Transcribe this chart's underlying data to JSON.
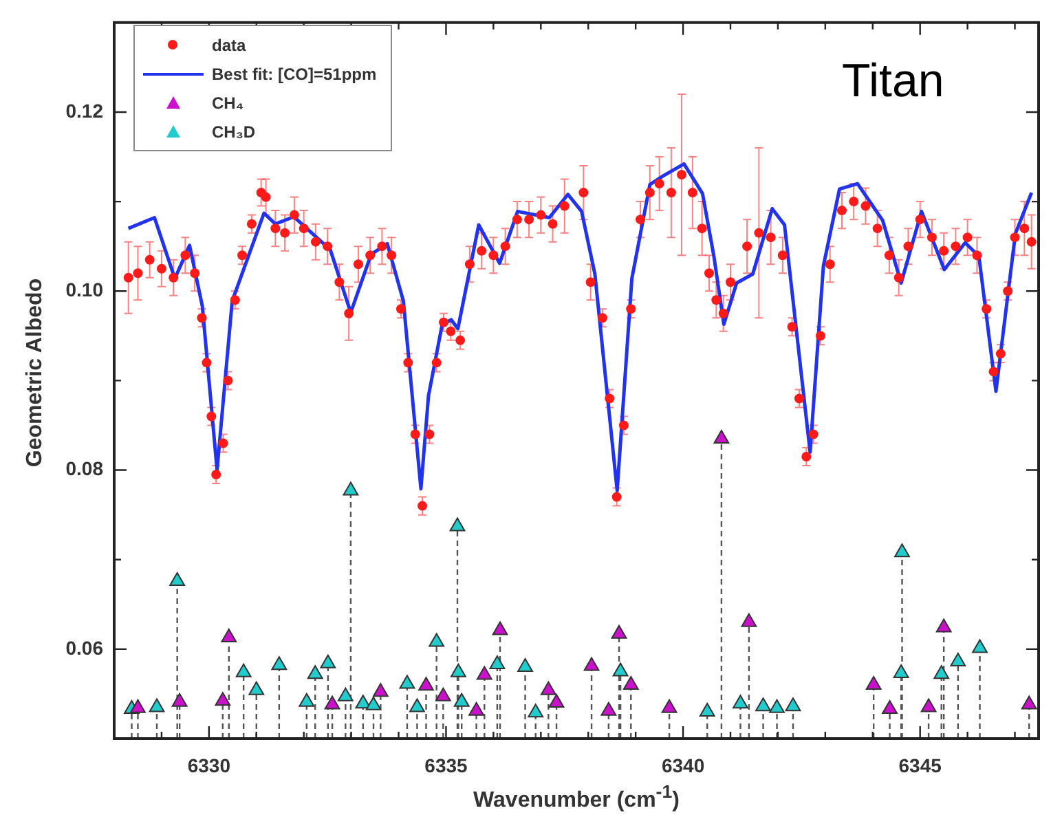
{
  "chart_data": {
    "type": "scatter",
    "xlabel": "Wavenumber (cm$^{-1}$)",
    "ylabel": "Geometric Albedo",
    "annotations": [
      "Titan"
    ],
    "legend": "top left",
    "grid": false,
    "xlim": [
      6328,
      6347.5
    ],
    "ylim": [
      0.05,
      0.13
    ],
    "xticks": [
      {
        "value": 6328,
        "label": null
      },
      {
        "value": 6329,
        "label": null
      },
      6330,
      {
        "value": 6331,
        "label": null
      },
      {
        "value": 6332,
        "label": null
      },
      {
        "value": 6333,
        "label": null
      },
      {
        "value": 6334,
        "label": null
      },
      6335,
      {
        "value": 6336,
        "label": null
      },
      {
        "value": 6337,
        "label": null
      },
      {
        "value": 6338,
        "label": null
      },
      {
        "value": 6339,
        "label": null
      },
      6340,
      {
        "value": 6341,
        "label": null
      },
      {
        "value": 6342,
        "label": null
      },
      {
        "value": 6343,
        "label": null
      },
      {
        "value": 6344,
        "label": null
      },
      6345,
      {
        "value": 6346,
        "label": null
      },
      {
        "value": 6347,
        "label": null
      }
    ],
    "yticks": [
      {
        "value": 0.05,
        "label": null
      },
      0.06,
      {
        "value": 0.07,
        "label": null
      },
      0.08,
      {
        "value": 0.09,
        "label": null
      },
      {
        "value": 0.1,
        "label": "0.10"
      },
      {
        "value": 0.11,
        "label": null
      },
      0.12
    ],
    "series": [
      {
        "type": "scatter",
        "name": "data",
        "color": "#ff1a1a",
        "marker": "circle",
        "x": [
          6328.3,
          6328.5,
          6328.75,
          6329.0,
          6329.25,
          6329.5,
          6329.7,
          6329.85,
          6329.95,
          6330.05,
          6330.15,
          6330.3,
          6330.4,
          6330.55,
          6330.7,
          6330.9,
          6331.1,
          6331.2,
          6331.4,
          6331.6,
          6331.8,
          6332.0,
          6332.25,
          6332.5,
          6332.75,
          6332.95,
          6333.15,
          6333.4,
          6333.65,
          6333.85,
          6334.05,
          6334.2,
          6334.35,
          6334.5,
          6334.65,
          6334.8,
          6334.95,
          6335.1,
          6335.3,
          6335.5,
          6335.75,
          6336.0,
          6336.25,
          6336.5,
          6336.75,
          6337.0,
          6337.25,
          6337.5,
          6337.9,
          6338.05,
          6338.3,
          6338.45,
          6338.6,
          6338.75,
          6338.9,
          6339.1,
          6339.3,
          6339.5,
          6339.75,
          6339.97,
          6340.2,
          6340.4,
          6340.55,
          6340.7,
          6340.85,
          6341.0,
          6341.35,
          6341.6,
          6341.85,
          6342.1,
          6342.3,
          6342.45,
          6342.6,
          6342.75,
          6342.9,
          6343.1,
          6343.35,
          6343.6,
          6343.85,
          6344.1,
          6344.35,
          6344.55,
          6344.75,
          6345.0,
          6345.25,
          6345.5,
          6345.75,
          6346.0,
          6346.2,
          6346.4,
          6346.55,
          6346.7,
          6346.85,
          6347.0,
          6347.2,
          6347.35
        ],
        "values": [
          0.1015,
          0.102,
          0.1035,
          0.1025,
          0.1015,
          0.104,
          0.102,
          0.097,
          0.092,
          0.086,
          0.0795,
          0.083,
          0.09,
          0.099,
          0.104,
          0.1075,
          0.111,
          0.1105,
          0.107,
          0.1065,
          0.1085,
          0.107,
          0.1055,
          0.105,
          0.101,
          0.0975,
          0.103,
          0.104,
          0.105,
          0.104,
          0.098,
          0.092,
          0.084,
          0.076,
          0.084,
          0.092,
          0.0965,
          0.0955,
          0.0945,
          0.103,
          0.1045,
          0.104,
          0.105,
          0.108,
          0.108,
          0.1085,
          0.1075,
          0.1095,
          0.111,
          0.101,
          0.097,
          0.088,
          0.077,
          0.085,
          0.098,
          0.108,
          0.111,
          0.112,
          0.111,
          0.113,
          0.111,
          0.107,
          0.102,
          0.099,
          0.0975,
          0.101,
          0.105,
          0.1065,
          0.106,
          0.104,
          0.096,
          0.088,
          0.0815,
          0.084,
          0.095,
          0.103,
          0.109,
          0.11,
          0.1095,
          0.107,
          0.104,
          0.1015,
          0.105,
          0.108,
          0.106,
          0.1045,
          0.105,
          0.106,
          0.104,
          0.098,
          0.091,
          0.093,
          0.1,
          0.106,
          0.107,
          0.1055
        ],
        "errors": [
          0.004,
          0.003,
          0.002,
          0.002,
          0.002,
          0.002,
          0.002,
          0.001,
          0.001,
          0.001,
          0.001,
          0.001,
          0.001,
          0.001,
          0.001,
          0.001,
          0.0015,
          0.002,
          0.002,
          0.002,
          0.002,
          0.002,
          0.002,
          0.002,
          0.002,
          0.003,
          0.002,
          0.002,
          0.002,
          0.002,
          0.001,
          0.001,
          0.001,
          0.001,
          0.001,
          0.001,
          0.001,
          0.001,
          0.001,
          0.002,
          0.002,
          0.002,
          0.002,
          0.002,
          0.002,
          0.002,
          0.002,
          0.003,
          0.003,
          0.002,
          0.001,
          0.001,
          0.001,
          0.001,
          0.001,
          0.002,
          0.003,
          0.003,
          0.005,
          0.009,
          0.004,
          0.003,
          0.002,
          0.002,
          0.002,
          0.002,
          0.003,
          0.0095,
          0.003,
          0.002,
          0.001,
          0.001,
          0.001,
          0.001,
          0.001,
          0.002,
          0.002,
          0.002,
          0.002,
          0.002,
          0.002,
          0.002,
          0.002,
          0.002,
          0.002,
          0.002,
          0.002,
          0.002,
          0.002,
          0.001,
          0.001,
          0.001,
          0.001,
          0.002,
          0.003,
          0.003
        ]
      },
      {
        "type": "line",
        "name": "Best fit: [CO]=51ppm",
        "color": "#2233ee",
        "marker": "none",
        "line_style": "solid",
        "x": [
          6328.3,
          6328.85,
          6329.28,
          6329.59,
          6329.86,
          6330.17,
          6330.49,
          6331.16,
          6331.4,
          6331.79,
          6332.56,
          6332.99,
          6333.42,
          6333.76,
          6334.1,
          6334.47,
          6334.63,
          6334.92,
          6335.11,
          6335.25,
          6335.69,
          6336.13,
          6336.51,
          6337.18,
          6337.57,
          6337.86,
          6338.14,
          6338.61,
          6338.92,
          6339.3,
          6339.59,
          6340.02,
          6340.41,
          6340.65,
          6340.86,
          6341.13,
          6341.47,
          6341.88,
          6342.14,
          6342.68,
          6342.96,
          6343.3,
          6343.68,
          6344.21,
          6344.6,
          6345.03,
          6345.51,
          6345.95,
          6346.24,
          6346.6,
          6347.01,
          6347.35
        ],
        "values": [
          0.107,
          0.1082,
          0.1014,
          0.1051,
          0.0983,
          0.08,
          0.0989,
          0.1087,
          0.1075,
          0.1083,
          0.1046,
          0.0976,
          0.1041,
          0.1053,
          0.0989,
          0.0779,
          0.0883,
          0.0963,
          0.0968,
          0.0958,
          0.1074,
          0.1031,
          0.1089,
          0.1082,
          0.1108,
          0.1089,
          0.1019,
          0.0777,
          0.1014,
          0.1119,
          0.1129,
          0.1142,
          0.1109,
          0.1039,
          0.0963,
          0.1009,
          0.1019,
          0.1092,
          0.1074,
          0.082,
          0.1028,
          0.1114,
          0.112,
          0.1079,
          0.1009,
          0.1089,
          0.1024,
          0.1054,
          0.1039,
          0.0888,
          0.1064,
          0.111
        ]
      },
      {
        "type": "lollipop",
        "name": "CH₄",
        "color": "#cc11cc",
        "marker": "triangle",
        "line_style": "dashed",
        "x": [
          6328.5,
          6329.38,
          6330.29,
          6330.42,
          6332.6,
          6333.62,
          6334.58,
          6334.94,
          6335.64,
          6335.81,
          6336.14,
          6337.16,
          6337.33,
          6338.07,
          6338.43,
          6338.65,
          6338.9,
          6339.71,
          6340.81,
          6341.39,
          6344.02,
          6344.36,
          6345.18,
          6345.5,
          6347.3
        ],
        "values": [
          0.0534,
          0.0541,
          0.0542,
          0.0613,
          0.0538,
          0.0552,
          0.0559,
          0.0547,
          0.0531,
          0.0571,
          0.0621,
          0.0554,
          0.054,
          0.0581,
          0.0531,
          0.0617,
          0.056,
          0.0534,
          0.0835,
          0.063,
          0.056,
          0.0533,
          0.0535,
          0.0624,
          0.0538
        ]
      },
      {
        "type": "lollipop",
        "name": "CH₃D",
        "color": "#22cccc",
        "marker": "triangle",
        "line_style": "dashed",
        "x": [
          6328.37,
          6328.9,
          6329.33,
          6330.73,
          6331.0,
          6331.48,
          6332.06,
          6332.24,
          6332.51,
          6332.88,
          6332.99,
          6333.25,
          6333.47,
          6334.18,
          6334.39,
          6334.8,
          6335.24,
          6335.26,
          6335.33,
          6336.08,
          6336.67,
          6336.89,
          6338.68,
          6340.51,
          6341.21,
          6341.69,
          6341.98,
          6342.32,
          6344.6,
          6344.62,
          6345.45,
          6345.8,
          6346.26
        ],
        "values": [
          0.0533,
          0.0535,
          0.0676,
          0.0574,
          0.0554,
          0.0582,
          0.0541,
          0.0572,
          0.0584,
          0.0547,
          0.0777,
          0.0539,
          0.0537,
          0.0561,
          0.0535,
          0.0608,
          0.0737,
          0.0574,
          0.0541,
          0.0583,
          0.058,
          0.0529,
          0.0575,
          0.053,
          0.0539,
          0.0536,
          0.0534,
          0.0536,
          0.0573,
          0.0708,
          0.0572,
          0.0586,
          0.0601
        ]
      }
    ]
  }
}
